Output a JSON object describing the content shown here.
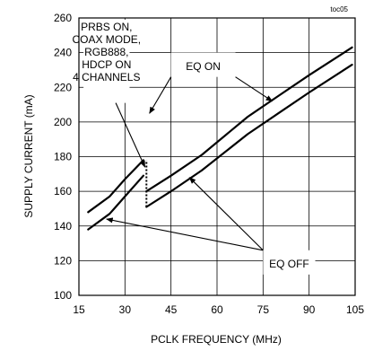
{
  "chart_data": {
    "type": "line",
    "title": "",
    "tag": "toc05",
    "xlabel": "PCLK FREQUENCY (MHz)",
    "ylabel": "SUPPLY CURRENT (mA)",
    "xlim": [
      15,
      105
    ],
    "ylim": [
      100,
      260
    ],
    "xticks": [
      15,
      30,
      45,
      60,
      75,
      90,
      105
    ],
    "yticks": [
      100,
      120,
      140,
      160,
      180,
      200,
      220,
      240,
      260
    ],
    "xtick_labels": [
      "15",
      "30",
      "45",
      "60",
      "75",
      "90",
      "105"
    ],
    "ytick_labels": [
      "100",
      "120",
      "140",
      "160",
      "180",
      "200",
      "220",
      "240",
      "260"
    ],
    "grid": true,
    "line_color": "#000000",
    "series": [
      {
        "id": "eq-on",
        "segments": [
          [
            [
              18,
              148
            ],
            [
              25,
              157
            ],
            [
              30,
              167
            ],
            [
              36,
              178
            ]
          ],
          [
            [
              37,
              160
            ],
            [
              45,
              169
            ],
            [
              55,
              181
            ],
            [
              70,
              203
            ],
            [
              80,
              215
            ],
            [
              90,
              227
            ],
            [
              104,
              243
            ]
          ]
        ]
      },
      {
        "id": "eq-off",
        "segments": [
          [
            [
              18,
              138
            ],
            [
              25,
              147
            ],
            [
              30,
              157
            ],
            [
              36,
              169
            ]
          ],
          [
            [
              37,
              151
            ],
            [
              45,
              160
            ],
            [
              55,
              172
            ],
            [
              70,
              193
            ],
            [
              80,
              205
            ],
            [
              90,
              217
            ],
            [
              104,
              233
            ]
          ]
        ]
      }
    ],
    "jumps": [
      {
        "x": 37,
        "y1": 151,
        "y2": 178
      }
    ],
    "annotations": {
      "conditions": {
        "lines": [
          "PRBS ON,",
          "COAX MODE,",
          "RGB888,",
          "HDCP ON",
          "4 CHANNELS"
        ],
        "box": {
          "x1": 16.5,
          "x2": 31.5,
          "y1": 211,
          "y2": 259
        },
        "arrow_from": [
          27,
          211
        ],
        "arrow_to": [
          36.5,
          174
        ]
      },
      "eq_on": {
        "text": "EQ ON",
        "box": {
          "x1": 45,
          "x2": 66,
          "y1": 226,
          "y2": 240
        },
        "text_pos": [
          55.5,
          232
        ],
        "arrows": [
          {
            "from": [
              66,
              226
            ],
            "to": [
              78,
              212
            ]
          },
          {
            "from": [
              45,
              226
            ],
            "to": [
              38,
              205
            ]
          }
        ]
      },
      "eq_off": {
        "text": "EQ OFF",
        "box": {
          "x1": 75,
          "x2": 92,
          "y1": 112,
          "y2": 126
        },
        "text_pos": [
          83.5,
          118
        ],
        "arrows": [
          {
            "from": [
              75,
              126
            ],
            "to": [
              24,
              144
            ]
          },
          {
            "from": [
              75,
              126
            ],
            "to": [
              51,
              168
            ]
          }
        ]
      }
    }
  }
}
